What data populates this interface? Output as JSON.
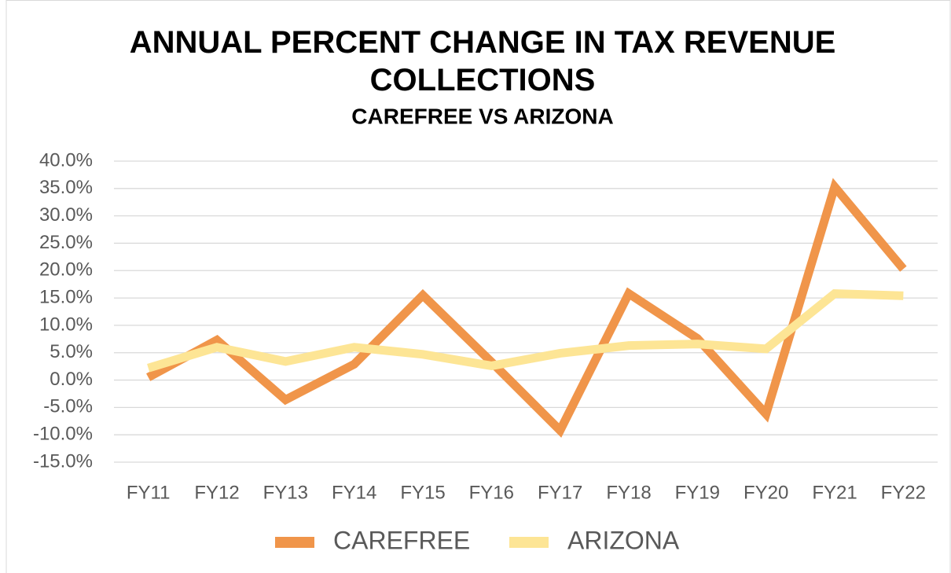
{
  "chart_data": {
    "type": "line",
    "title": "ANNUAL PERCENT CHANGE IN TAX REVENUE COLLECTIONS",
    "subtitle": "CAREFREE VS ARIZONA",
    "categories": [
      "FY11",
      "FY12",
      "FY13",
      "FY14",
      "FY15",
      "FY16",
      "FY17",
      "FY18",
      "FY19",
      "FY20",
      "FY21",
      "FY22"
    ],
    "series": [
      {
        "name": "CAREFREE",
        "color": "#f0954a",
        "values": [
          0.5,
          7.3,
          -3.6,
          2.9,
          15.5,
          3.3,
          -9.2,
          15.8,
          7.6,
          -6.2,
          35.3,
          20.3
        ]
      },
      {
        "name": "ARIZONA",
        "color": "#fde595",
        "values": [
          2.2,
          6.0,
          3.4,
          6.0,
          4.7,
          2.6,
          4.9,
          6.3,
          6.6,
          5.7,
          15.8,
          15.4
        ]
      }
    ],
    "ylim": [
      -15,
      40
    ],
    "yticks": [
      {
        "value": -15,
        "label": "-15.0%"
      },
      {
        "value": -10,
        "label": "-10.0%"
      },
      {
        "value": -5,
        "label": "-5.0%"
      },
      {
        "value": 0,
        "label": "0.0%"
      },
      {
        "value": 5,
        "label": "5.0%"
      },
      {
        "value": 10,
        "label": "10.0%"
      },
      {
        "value": 15,
        "label": "15.0%"
      },
      {
        "value": 20,
        "label": "20.0%"
      },
      {
        "value": 25,
        "label": "25.0%"
      },
      {
        "value": 30,
        "label": "30.0%"
      },
      {
        "value": 35,
        "label": "35.0%"
      },
      {
        "value": 40,
        "label": "40.0%"
      }
    ],
    "grid": true,
    "legend": "bottom"
  }
}
